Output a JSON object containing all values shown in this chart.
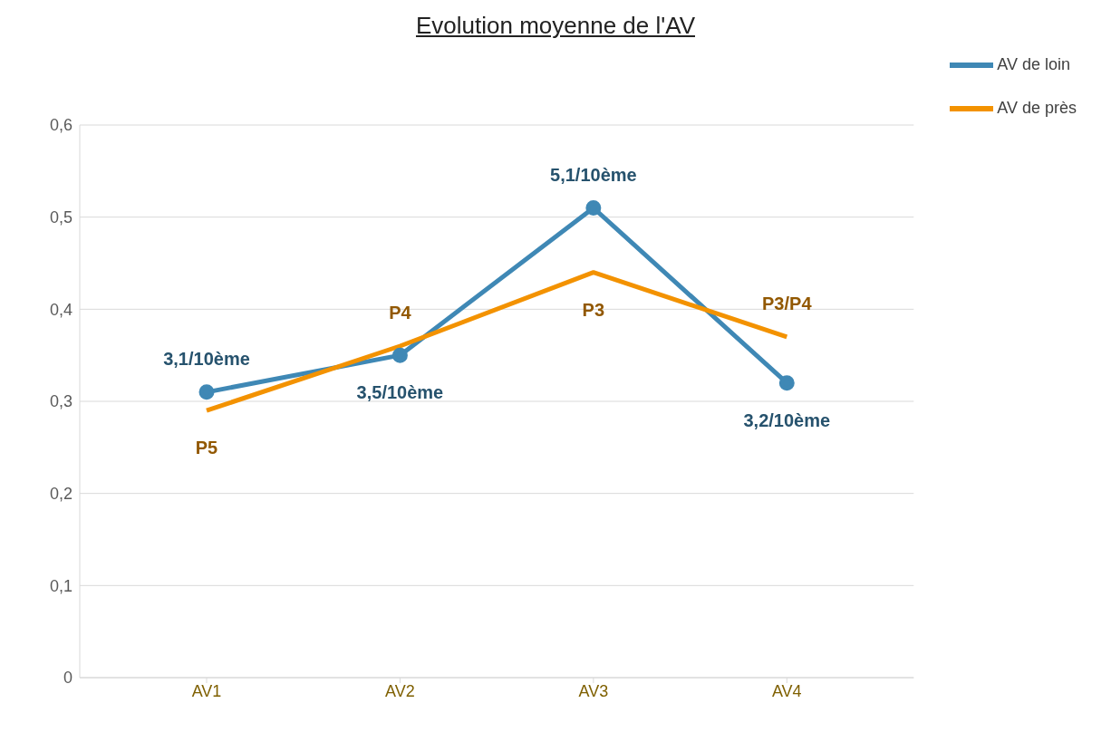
{
  "chart_data": {
    "type": "line",
    "title": "Evolution moyenne de l'AV",
    "categories": [
      "AV1",
      "AV2",
      "AV3",
      "AV4"
    ],
    "series": [
      {
        "name": "AV de loin",
        "color": "#3f88b5",
        "values": [
          0.31,
          0.35,
          0.51,
          0.32
        ],
        "marker": "circle",
        "value_labels": [
          "3,1/10ème",
          "3,5/10ème",
          "5,1/10ème",
          "3,2/10ème"
        ]
      },
      {
        "name": "AV de près",
        "color": "#f39200",
        "values": [
          0.29,
          0.36,
          0.44,
          0.37
        ],
        "marker": "none",
        "value_labels": [
          "P5",
          "P4",
          "P3",
          "P3/P4"
        ]
      }
    ],
    "ylim": [
      0,
      0.6
    ],
    "yticks": [
      0,
      {
        "value": 0.1,
        "label": "0,1"
      },
      {
        "value": 0.2,
        "label": "0,2"
      },
      {
        "value": 0.3,
        "label": "0,3"
      },
      {
        "value": 0.4,
        "label": "0,4"
      },
      {
        "value": 0.5,
        "label": "0,5"
      },
      {
        "value": 0.6,
        "label": "0,6"
      }
    ],
    "grid": "y",
    "legend": "top right",
    "line_style": "solid"
  }
}
